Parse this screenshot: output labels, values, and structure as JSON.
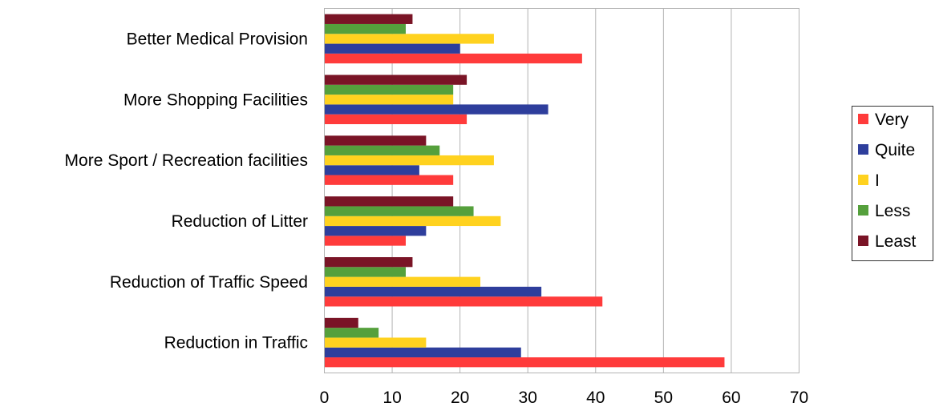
{
  "chart_data": {
    "type": "bar",
    "orientation": "horizontal",
    "categories": [
      "Better Medical Provision",
      "More Shopping Facilities",
      "More Sport / Recreation facilities",
      "Reduction of Litter",
      "Reduction of Traffic Speed",
      "Reduction in Traffic"
    ],
    "series": [
      {
        "name": "Very",
        "color": "#ff3b3b",
        "values": [
          38,
          21,
          19,
          12,
          41,
          59
        ]
      },
      {
        "name": "Quite",
        "color": "#2e3e9c",
        "values": [
          20,
          33,
          14,
          15,
          32,
          29
        ]
      },
      {
        "name": "I",
        "color": "#ffd21f",
        "values": [
          25,
          19,
          25,
          26,
          23,
          15
        ]
      },
      {
        "name": "Less",
        "color": "#55a03c",
        "values": [
          12,
          19,
          17,
          22,
          12,
          8
        ]
      },
      {
        "name": "Least",
        "color": "#7a1426",
        "values": [
          13,
          21,
          15,
          19,
          13,
          5
        ]
      }
    ],
    "xlim": [
      0,
      70
    ],
    "xticks": [
      "0",
      "10",
      "20",
      "30",
      "40",
      "50",
      "60",
      "70"
    ],
    "grid": "vertical",
    "legend_position": "right",
    "title": "",
    "xlabel": "",
    "ylabel": ""
  }
}
